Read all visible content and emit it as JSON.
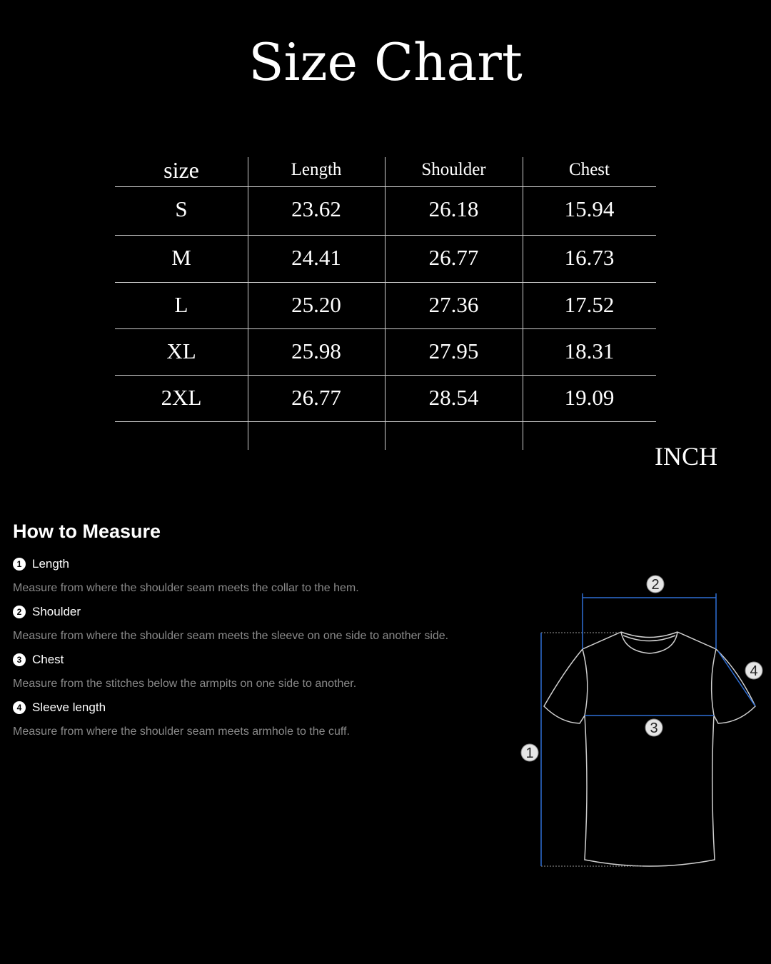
{
  "title": "Size Chart",
  "table": {
    "headers": [
      "size",
      "Length",
      "Shoulder",
      "Chest"
    ],
    "rows": [
      [
        "S",
        "23.62",
        "26.18",
        "15.94"
      ],
      [
        "M",
        "24.41",
        "26.77",
        "16.73"
      ],
      [
        "L",
        "25.20",
        "27.36",
        "17.52"
      ],
      [
        "XL",
        "25.98",
        "27.95",
        "18.31"
      ],
      [
        "2XL",
        "26.77",
        "28.54",
        "19.09"
      ]
    ]
  },
  "unit": "INCH",
  "how_to_measure": {
    "heading": "How to Measure",
    "steps": [
      {
        "num": "1",
        "label": "Length",
        "desc": "Measure from where the shoulder seam meets the collar to the hem."
      },
      {
        "num": "2",
        "label": "Shoulder",
        "desc": "Measure from where the shoulder seam meets the sleeve on one side to another side."
      },
      {
        "num": "3",
        "label": "Chest",
        "desc": "Measure from the stitches below the armpits on one side to another."
      },
      {
        "num": "4",
        "label": "Sleeve length",
        "desc": "Measure from where the shoulder seam meets armhole to the cuff."
      }
    ]
  },
  "diagram": {
    "markers": [
      "1",
      "2",
      "3",
      "4"
    ],
    "line_color": "#2f6fd6",
    "outline_color": "#d0d0d0"
  }
}
